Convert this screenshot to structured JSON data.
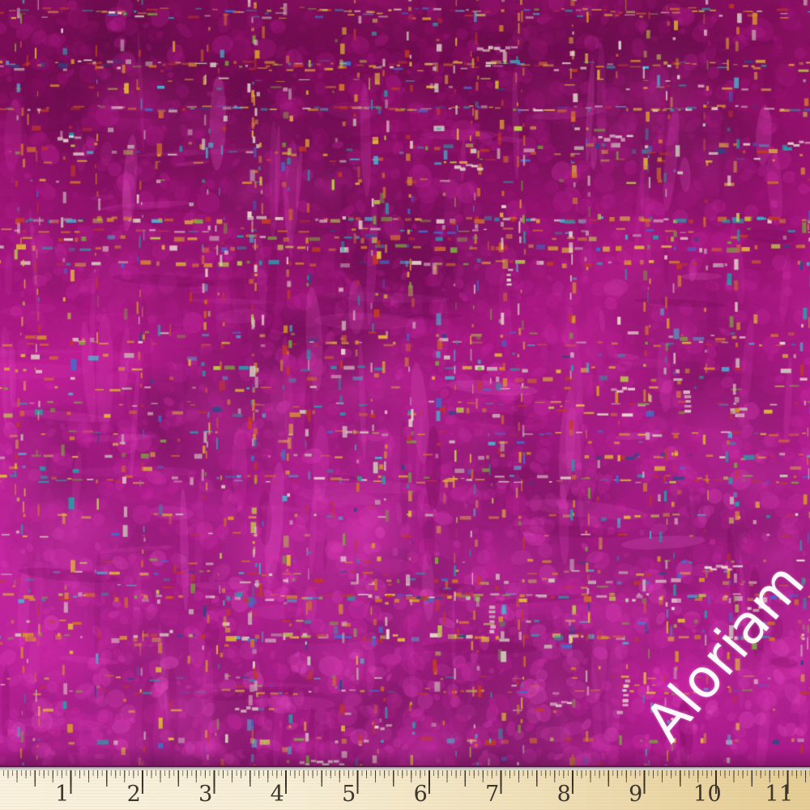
{
  "scene": {
    "subject": "Close-up photo of magenta fuchsia chenille upholstery fabric with distressed plaid texture and multicolored woven thread accents",
    "background_color": "#b01c8e"
  },
  "watermark": {
    "text": "Aloriam",
    "color": "#ffffff",
    "rotation_deg": -50
  },
  "ruler": {
    "unit": "inches",
    "numbers": [
      "1",
      "2",
      "3",
      "4",
      "5",
      "6",
      "7",
      "8",
      "9",
      "10",
      "11"
    ],
    "tick_color": "#3e3428",
    "number_color": "#3c362c",
    "wood_light": "#f9f1dd",
    "wood_dark": "#e6cd96",
    "edge_color": "#c8c4be"
  },
  "fabric": {
    "base_gradient": [
      "#901166",
      "#8c0f63",
      "#9a1372",
      "#ab1781",
      "#bc1d92",
      "#c2229c",
      "#c627a2",
      "#c1229c",
      "#ad1a8c"
    ],
    "pile_shades": [
      "#7c0b58",
      "#8e1068",
      "#9e1377",
      "#ae1886",
      "#be2096",
      "#cc28a4",
      "#da33b2",
      "#e642c0",
      "#f055cc"
    ],
    "dark_patch": "#6e084f",
    "bright_patch": "#ea4ac4",
    "highlight_pink": "#ef5ecd",
    "cream_accent": "#efe8da",
    "thread_colors": [
      "#e3b93a",
      "#d8962c",
      "#d2702c",
      "#c33a24",
      "#e8ddd0",
      "#cfc8bd",
      "#2b9aa8",
      "#49b6d4",
      "#3f6fd0",
      "#7ba83c",
      "#bfd24a",
      "#274a86"
    ],
    "thread_weights": [
      3,
      2,
      2,
      2,
      2,
      2,
      1.5,
      1,
      1,
      1,
      1,
      0.5
    ]
  }
}
